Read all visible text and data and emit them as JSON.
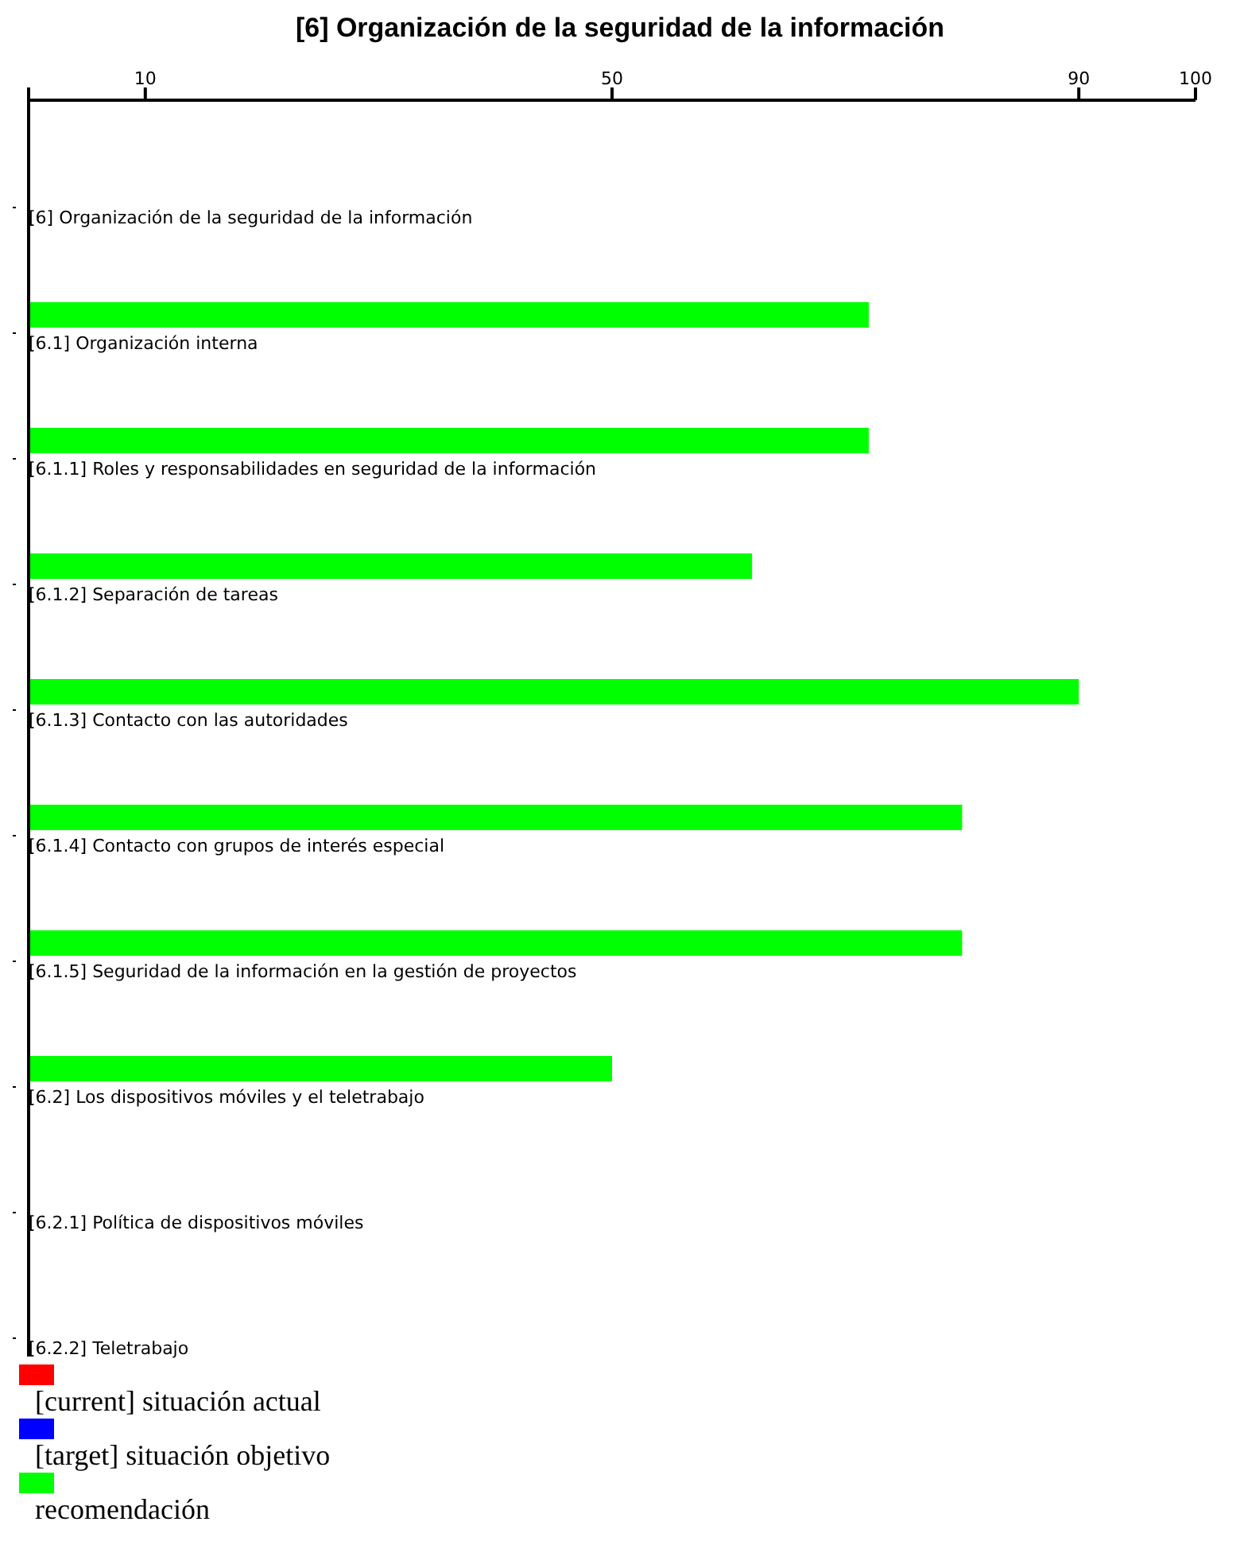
{
  "chart_data": {
    "type": "bar",
    "orientation": "horizontal",
    "title": "[6] Organización de la seguridad de la información",
    "categories": [
      "[6] Organización de la seguridad de la información",
      "[6.1] Organización interna",
      "[6.1.1] Roles y responsabilidades en seguridad de la información",
      "[6.1.2] Separación de tareas",
      "[6.1.3] Contacto con las autoridades",
      "[6.1.4] Contacto con grupos de interés especial",
      "[6.1.5] Seguridad de la información en la gestión de proyectos",
      "[6.2] Los dispositivos móviles y el teletrabajo",
      "[6.2.1] Política de dispositivos móviles",
      "[6.2.2] Teletrabajo"
    ],
    "series": [
      {
        "name": "[current] situación actual",
        "color": "#ff0000",
        "values": [
          null,
          null,
          null,
          null,
          null,
          null,
          null,
          null,
          null,
          null
        ]
      },
      {
        "name": "[target] situación objetivo",
        "color": "#0000ff",
        "values": [
          null,
          null,
          null,
          null,
          null,
          null,
          null,
          null,
          null,
          null
        ]
      },
      {
        "name": "recomendación",
        "color": "#00ff00",
        "values": [
          null,
          72,
          72,
          62,
          90,
          80,
          80,
          50,
          null,
          null
        ]
      }
    ],
    "xlim": [
      0,
      100
    ],
    "xticks": [
      {
        "value": 0,
        "label": null
      },
      10,
      50,
      90,
      100
    ],
    "grid": false,
    "legend": "bottom"
  }
}
